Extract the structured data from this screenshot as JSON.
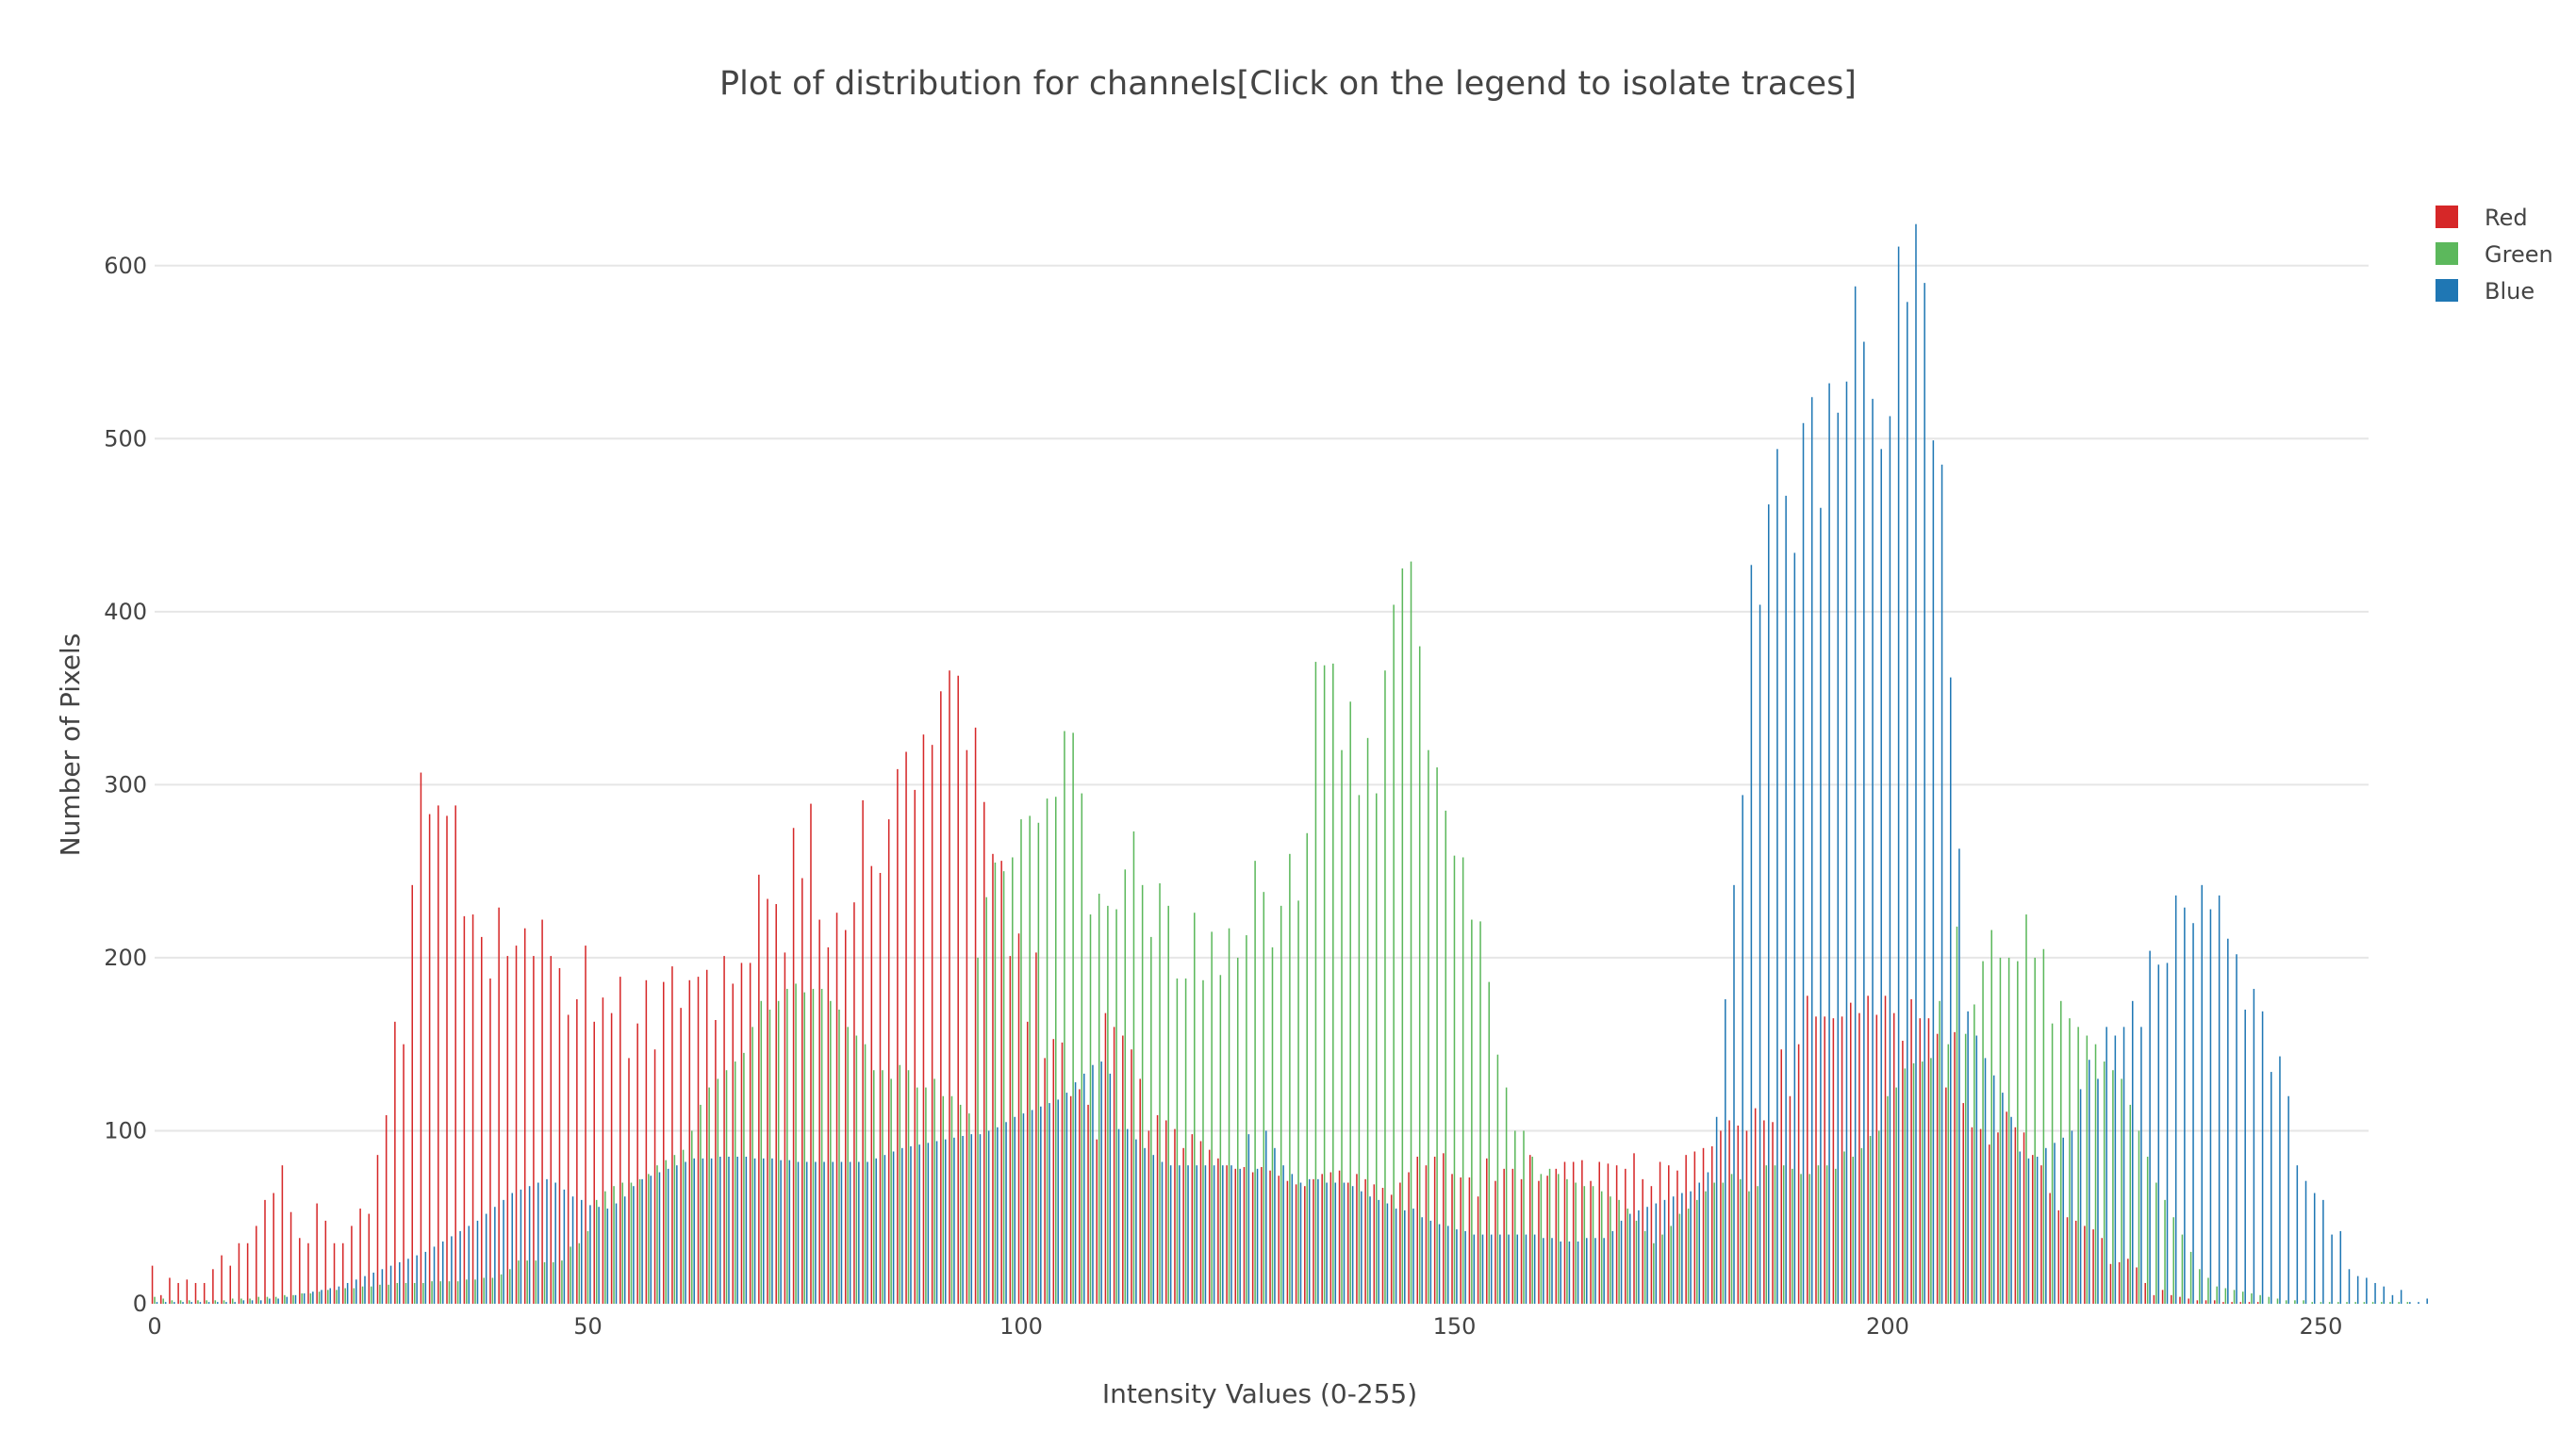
{
  "chart_data": {
    "type": "bar",
    "title": "Plot of distribution for channels[Click on the legend to isolate traces]",
    "xlabel": "Intensity Values (0-255)",
    "ylabel": "Number of Pixels",
    "xlim": [
      0,
      255
    ],
    "ylim": [
      0,
      650
    ],
    "xticks": [
      0,
      50,
      100,
      150,
      200,
      250
    ],
    "yticks": [
      0,
      100,
      200,
      300,
      400,
      500,
      600
    ],
    "grid": true,
    "legend_position": "top-right",
    "series": [
      {
        "name": "Red",
        "color": "#d62728",
        "x_start": 0,
        "values": [
          22,
          5,
          15,
          12,
          14,
          12,
          12,
          20,
          28,
          22,
          35,
          35,
          45,
          60,
          64,
          80,
          53,
          38,
          35,
          58,
          48,
          35,
          35,
          45,
          55,
          52,
          86,
          109,
          163,
          150,
          242,
          307,
          283,
          288,
          282,
          288,
          224,
          225,
          212,
          188,
          229,
          201,
          207,
          217,
          201,
          222,
          201,
          194,
          167,
          176,
          207,
          163,
          177,
          168,
          189,
          142,
          162,
          187,
          147,
          186,
          195,
          171,
          187,
          189,
          193,
          164,
          201,
          185,
          197,
          197,
          248,
          234,
          231,
          203,
          275,
          246,
          289,
          222,
          206,
          226,
          216,
          232,
          291,
          253,
          249,
          280,
          309,
          319,
          297,
          329,
          323,
          354,
          366,
          363,
          320,
          333,
          290,
          260,
          256,
          201,
          214,
          163,
          203,
          142,
          153,
          151,
          120,
          124,
          115,
          95,
          168,
          160,
          155,
          147,
          130,
          100,
          109,
          106,
          101,
          90,
          98,
          94,
          89,
          84,
          80,
          78,
          79,
          76,
          79,
          77,
          74,
          71,
          69,
          68,
          72,
          75,
          76,
          77,
          70,
          75,
          72,
          69,
          67,
          63,
          70,
          76,
          85,
          80,
          85,
          87,
          75,
          73,
          73,
          62,
          84,
          71,
          78,
          78,
          72,
          86,
          71,
          74,
          78,
          82,
          82,
          83,
          71,
          82,
          81,
          80,
          78,
          87,
          72,
          68,
          82,
          80,
          77,
          86,
          88,
          90,
          91,
          100,
          106,
          103,
          100,
          113,
          106,
          105,
          147,
          120,
          150,
          178,
          166,
          166,
          165,
          166,
          174,
          168,
          178,
          167,
          178,
          168,
          152,
          176,
          165,
          165,
          156,
          125,
          157,
          116,
          102,
          101,
          92,
          99,
          111,
          102,
          99,
          86,
          80,
          64,
          54,
          50,
          48,
          45,
          43,
          38,
          23,
          24,
          26,
          21,
          12,
          5,
          8,
          5,
          4,
          3,
          2,
          2,
          2,
          1,
          1,
          1,
          1,
          1,
          0,
          0,
          0,
          0,
          0,
          0,
          0,
          0,
          0,
          0,
          0,
          0,
          0,
          0,
          0,
          0
        ]
      },
      {
        "name": "Green",
        "color": "#5cb85c",
        "x_start": 0,
        "values": [
          4,
          3,
          2,
          2,
          2,
          2,
          2,
          2,
          2,
          3,
          3,
          3,
          4,
          4,
          4,
          5,
          5,
          6,
          6,
          7,
          8,
          8,
          9,
          9,
          10,
          10,
          11,
          11,
          12,
          12,
          12,
          12,
          13,
          13,
          13,
          13,
          14,
          14,
          15,
          15,
          17,
          20,
          25,
          25,
          25,
          24,
          24,
          25,
          33,
          35,
          42,
          60,
          65,
          68,
          70,
          70,
          72,
          75,
          80,
          83,
          86,
          89,
          100,
          115,
          125,
          130,
          135,
          140,
          145,
          160,
          175,
          170,
          175,
          182,
          185,
          180,
          182,
          182,
          175,
          170,
          160,
          155,
          150,
          135,
          135,
          130,
          138,
          135,
          125,
          125,
          130,
          120,
          120,
          115,
          110,
          200,
          235,
          255,
          250,
          258,
          280,
          282,
          278,
          292,
          293,
          331,
          330,
          295,
          225,
          237,
          230,
          228,
          251,
          273,
          242,
          212,
          243,
          230,
          188,
          188,
          226,
          187,
          215,
          190,
          217,
          200,
          213,
          256,
          238,
          206,
          230,
          260,
          233,
          272,
          371,
          369,
          370,
          320,
          348,
          294,
          327,
          295,
          366,
          404,
          425,
          429,
          380,
          320,
          310,
          285,
          259,
          258,
          222,
          221,
          186,
          144,
          125,
          100,
          100,
          85,
          75,
          78,
          75,
          72,
          70,
          68,
          68,
          65,
          62,
          60,
          55,
          48,
          42,
          35,
          40,
          45,
          52,
          55,
          60,
          65,
          70,
          70,
          75,
          72,
          65,
          68,
          80,
          80,
          80,
          78,
          75,
          75,
          80,
          80,
          78,
          88,
          85,
          90,
          97,
          100,
          120,
          125,
          136,
          139,
          140,
          142,
          175,
          150,
          218,
          156,
          173,
          198,
          216,
          200,
          200,
          198,
          225,
          200,
          205,
          162,
          175,
          165,
          160,
          155,
          150,
          140,
          135,
          130,
          115,
          100,
          85,
          70,
          60,
          50,
          40,
          30,
          20,
          15,
          10,
          9,
          8,
          7,
          6,
          5,
          4,
          3,
          2,
          2,
          2,
          1,
          1,
          1,
          1,
          1,
          1,
          1,
          1,
          1,
          1,
          1,
          1
        ]
      },
      {
        "name": "Blue",
        "color": "#1f77b4",
        "x_start": 0,
        "values": [
          1,
          1,
          1,
          1,
          1,
          1,
          1,
          1,
          1,
          1,
          2,
          2,
          2,
          3,
          3,
          4,
          5,
          6,
          7,
          8,
          9,
          10,
          12,
          14,
          16,
          18,
          20,
          22,
          24,
          26,
          28,
          30,
          33,
          36,
          39,
          42,
          45,
          48,
          52,
          56,
          60,
          64,
          66,
          68,
          70,
          72,
          70,
          66,
          62,
          60,
          57,
          56,
          55,
          58,
          62,
          68,
          72,
          74,
          76,
          78,
          80,
          82,
          84,
          84,
          84,
          85,
          85,
          85,
          85,
          84,
          84,
          84,
          83,
          83,
          82,
          82,
          82,
          82,
          82,
          82,
          82,
          82,
          82,
          84,
          86,
          88,
          90,
          91,
          92,
          93,
          94,
          95,
          96,
          97,
          98,
          98,
          100,
          102,
          105,
          108,
          110,
          112,
          114,
          116,
          118,
          122,
          128,
          133,
          138,
          140,
          133,
          101,
          101,
          95,
          90,
          86,
          82,
          80,
          80,
          80,
          80,
          80,
          80,
          80,
          80,
          78,
          98,
          78,
          100,
          90,
          80,
          75,
          70,
          72,
          72,
          70,
          70,
          70,
          68,
          65,
          62,
          60,
          58,
          55,
          54,
          55,
          50,
          48,
          46,
          45,
          43,
          42,
          40,
          40,
          40,
          40,
          40,
          40,
          40,
          40,
          38,
          38,
          36,
          36,
          36,
          38,
          38,
          38,
          42,
          48,
          52,
          54,
          56,
          58,
          60,
          62,
          64,
          65,
          70,
          76,
          108,
          176,
          242,
          294,
          427,
          404,
          462,
          494,
          467,
          434,
          509,
          524,
          460,
          532,
          515,
          533,
          588,
          556,
          523,
          494,
          513,
          611,
          579,
          624,
          590,
          499,
          485,
          362,
          263,
          169,
          155,
          142,
          132,
          122,
          108,
          88,
          84,
          85,
          90,
          93,
          96,
          100,
          124,
          141,
          130,
          160,
          155,
          160,
          175,
          160,
          204,
          196,
          197,
          236,
          229,
          220,
          242,
          228,
          236,
          211,
          202,
          170,
          182,
          169,
          134,
          143,
          120,
          80,
          71,
          64,
          60,
          40,
          42,
          20,
          16,
          15,
          12,
          10,
          5,
          8,
          1,
          1,
          3
        ]
      }
    ]
  }
}
